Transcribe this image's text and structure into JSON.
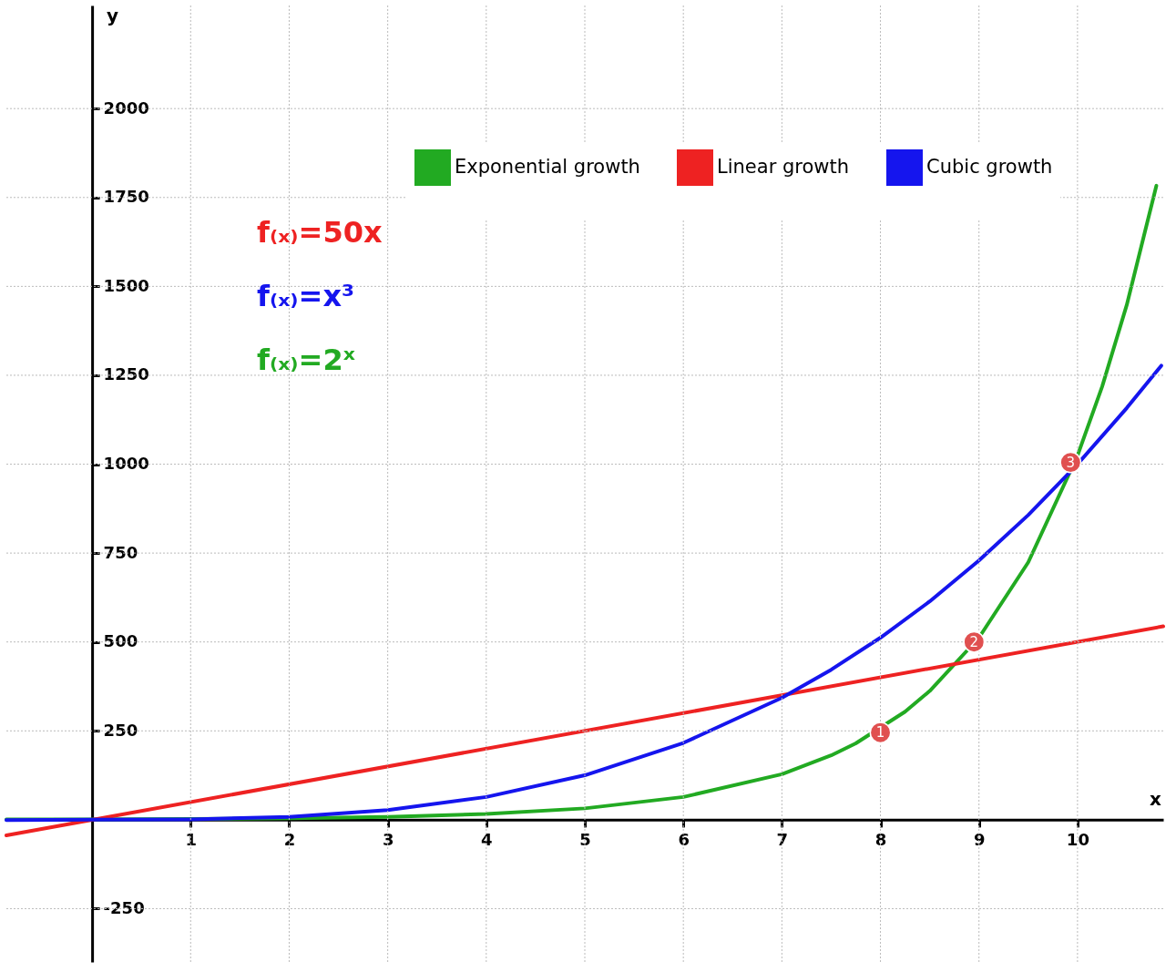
{
  "chart_data": {
    "type": "line",
    "xlabel": "x",
    "ylabel": "y",
    "xlim": [
      -0.87,
      10.87
    ],
    "ylim": [
      -400,
      2290
    ],
    "xticks": [
      1,
      2,
      3,
      4,
      5,
      6,
      7,
      8,
      9,
      10
    ],
    "yticks": [
      -250,
      250,
      500,
      750,
      1000,
      1250,
      1500,
      1750,
      2000
    ],
    "grid": true,
    "legend": "top right",
    "annotations": [
      "f₍ₓ₎=50x",
      "f₍ₓ₎=x³",
      "f₍ₓ₎=2ˣ",
      {
        "text": "1",
        "x": 8,
        "y": 245
      },
      {
        "text": "2",
        "x": 8.95,
        "y": 500
      },
      {
        "text": "3",
        "x": 9.93,
        "y": 1005
      }
    ],
    "series": [
      {
        "name": "Exponential growth",
        "color": "#22aa22",
        "x": [
          -0.87,
          0,
          1,
          2,
          3,
          4,
          5,
          6,
          7,
          7.5,
          7.75,
          8.25,
          8.5,
          9,
          9.5,
          10,
          10.25,
          10.5,
          10.8
        ],
        "values": [
          1,
          1,
          2,
          4,
          8,
          16,
          32,
          64,
          128,
          181,
          215,
          304,
          362,
          512,
          724,
          1024,
          1218,
          1448,
          1783
        ]
      },
      {
        "name": "Linear growth",
        "color": "#ee2222",
        "x": [
          -0.87,
          10.87
        ],
        "values": [
          -44,
          544
        ]
      },
      {
        "name": "Cubic growth",
        "color": "#1515ee",
        "x": [
          -0.87,
          0,
          1,
          2,
          3,
          4,
          5,
          6,
          7,
          7.5,
          8,
          8.5,
          9,
          9.5,
          10,
          10.5,
          10.85
        ],
        "values": [
          -1,
          0,
          1,
          8,
          27,
          64,
          125,
          216,
          343,
          422,
          512,
          614,
          729,
          857,
          1000,
          1158,
          1277
        ]
      },
      {
        "type": "scatter",
        "color": "#e05050",
        "x": [
          8,
          8.95,
          9.93
        ],
        "values": [
          245,
          500,
          1005
        ]
      }
    ]
  }
}
